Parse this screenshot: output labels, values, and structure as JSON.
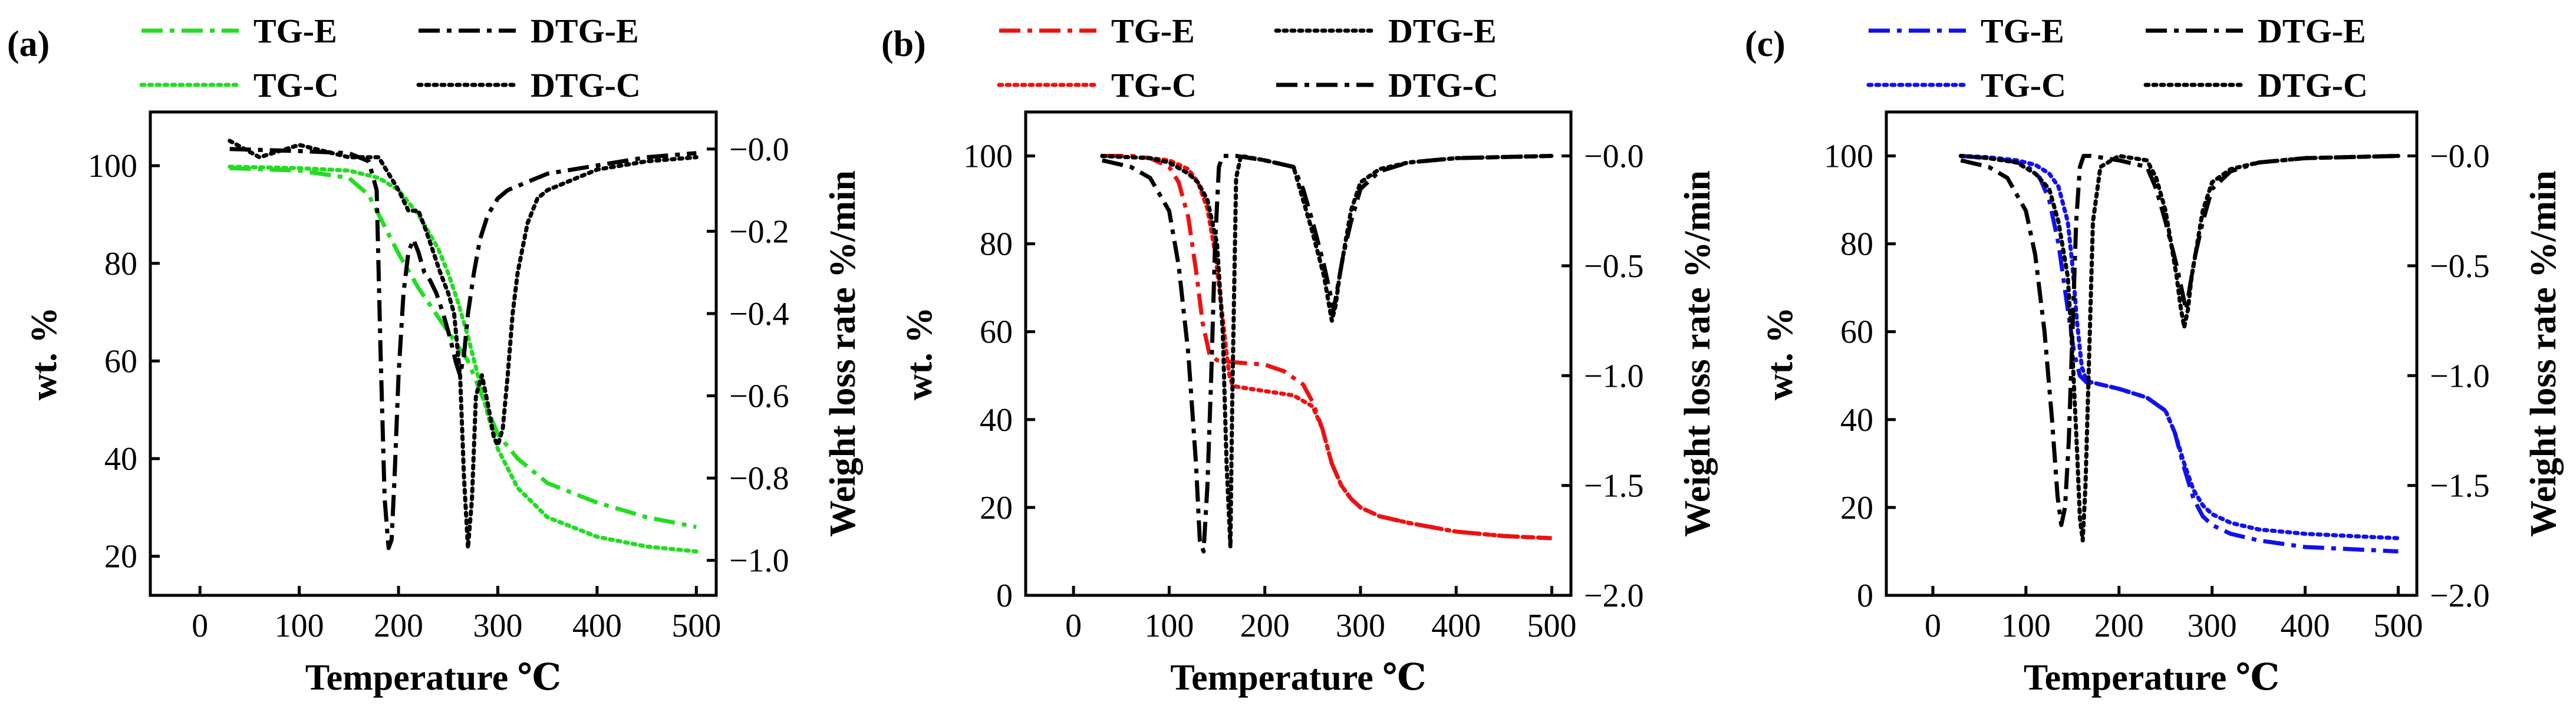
{
  "figure": {
    "panel_count": 3
  },
  "chart_data": [
    {
      "panel": "(a)",
      "type": "line",
      "xlabel": "Temperature ℃",
      "ylabel_left": "wt. %",
      "ylabel_right": "Weight loss rate %/min",
      "xlim": [
        -50,
        520
      ],
      "xticks": [
        0,
        100,
        200,
        300,
        400,
        500
      ],
      "ylim_left": [
        12,
        111
      ],
      "yticks_left": [
        20,
        40,
        60,
        80,
        100
      ],
      "ylim_right": [
        -1.085,
        0.09
      ],
      "yticks_right": [
        -1.0,
        -0.8,
        -0.6,
        -0.4,
        -0.2,
        -0.0
      ],
      "ytick_labels_right": [
        "−1.0",
        "−0.8",
        "−0.6",
        "−0.4",
        "−0.2",
        "−0.0"
      ],
      "legend": [
        {
          "label": "TG-E",
          "style": "dashdot",
          "color": "#22dd22"
        },
        {
          "label": "DTG-E",
          "style": "dashdot",
          "color": "#000000"
        },
        {
          "label": "TG-C",
          "style": "dotted",
          "color": "#22dd22"
        },
        {
          "label": "DTG-C",
          "style": "dotted",
          "color": "#000000"
        }
      ],
      "series": [
        {
          "name": "TG-E",
          "axis": "left",
          "style": "dashdot",
          "color": "#22dd22",
          "x": [
            30,
            100,
            150,
            170,
            180,
            190,
            200,
            210,
            220,
            230,
            240,
            250,
            260,
            270,
            280,
            290,
            300,
            320,
            350,
            400,
            450,
            500
          ],
          "y": [
            99.5,
            99,
            97.5,
            94,
            90,
            86,
            82,
            78.5,
            75,
            72,
            69,
            66,
            63,
            60,
            55,
            50,
            45,
            40,
            35,
            31,
            28,
            26
          ]
        },
        {
          "name": "TG-C",
          "axis": "left",
          "style": "dotted",
          "color": "#22dd22",
          "x": [
            30,
            100,
            150,
            180,
            200,
            220,
            240,
            250,
            260,
            270,
            280,
            290,
            300,
            320,
            350,
            400,
            450,
            500
          ],
          "y": [
            99.8,
            99.5,
            99,
            97.5,
            95,
            90,
            83,
            78,
            72,
            65,
            57,
            49,
            42,
            34,
            28,
            24,
            22,
            21
          ]
        },
        {
          "name": "DTG-E",
          "axis": "right",
          "style": "dashdot",
          "color": "#000000",
          "x": [
            30,
            100,
            150,
            170,
            178,
            182,
            186,
            190,
            193,
            196,
            200,
            205,
            210,
            215,
            220,
            226,
            232,
            238,
            245,
            252,
            258,
            262,
            266,
            270,
            276,
            282,
            290,
            300,
            310,
            320,
            350,
            400,
            450,
            500
          ],
          "y": [
            0.0,
            -0.005,
            -0.01,
            -0.03,
            -0.1,
            -0.5,
            -0.85,
            -0.97,
            -0.95,
            -0.8,
            -0.55,
            -0.35,
            -0.25,
            -0.22,
            -0.25,
            -0.3,
            -0.32,
            -0.35,
            -0.4,
            -0.46,
            -0.52,
            -0.55,
            -0.5,
            -0.4,
            -0.3,
            -0.22,
            -0.16,
            -0.12,
            -0.1,
            -0.09,
            -0.06,
            -0.04,
            -0.02,
            -0.01
          ]
        },
        {
          "name": "DTG-C",
          "axis": "right",
          "style": "dotted",
          "color": "#000000",
          "x": [
            30,
            60,
            100,
            150,
            180,
            200,
            210,
            220,
            228,
            235,
            242,
            250,
            256,
            262,
            266,
            270,
            274,
            278,
            284,
            290,
            296,
            300,
            305,
            310,
            315,
            320,
            330,
            340,
            350,
            400,
            450,
            500
          ],
          "y": [
            0.02,
            -0.02,
            0.01,
            -0.02,
            -0.02,
            -0.1,
            -0.15,
            -0.15,
            -0.2,
            -0.25,
            -0.3,
            -0.35,
            -0.4,
            -0.55,
            -0.8,
            -0.97,
            -0.85,
            -0.6,
            -0.55,
            -0.62,
            -0.7,
            -0.72,
            -0.68,
            -0.55,
            -0.4,
            -0.3,
            -0.18,
            -0.12,
            -0.1,
            -0.05,
            -0.03,
            -0.02
          ]
        }
      ]
    },
    {
      "panel": "(b)",
      "type": "line",
      "xlabel": "Temperature ℃",
      "ylabel_left": "wt. %",
      "ylabel_right": "Weight loss rate %/min",
      "xlim": [
        -50,
        520
      ],
      "xticks": [
        0,
        100,
        200,
        300,
        400,
        500
      ],
      "ylim_left": [
        0,
        110
      ],
      "yticks_left": [
        0,
        20,
        40,
        60,
        80,
        100
      ],
      "ylim_right": [
        -2.0,
        0.2
      ],
      "yticks_right": [
        -2.0,
        -1.5,
        -1.0,
        -0.5,
        -0.0
      ],
      "ytick_labels_right": [
        "−2.0",
        "−1.5",
        "−1.0",
        "−0.5",
        "−0.0"
      ],
      "legend": [
        {
          "label": "TG-E",
          "style": "dashdot",
          "color": "#ee1111"
        },
        {
          "label": "DTG-E",
          "style": "dotted",
          "color": "#000000"
        },
        {
          "label": "TG-C",
          "style": "dotted",
          "color": "#ee1111"
        },
        {
          "label": "DTG-C",
          "style": "dashdot",
          "color": "#000000"
        }
      ],
      "series": [
        {
          "name": "TG-E",
          "axis": "left",
          "style": "dashdot",
          "color": "#ee1111",
          "x": [
            30,
            60,
            80,
            100,
            110,
            120,
            128,
            135,
            142,
            150,
            170,
            200,
            220,
            240,
            250,
            260,
            270,
            280,
            290,
            300,
            320,
            350,
            400,
            450,
            500
          ],
          "y": [
            100,
            100,
            99.5,
            97.5,
            94,
            86,
            74,
            62,
            55,
            53.5,
            53,
            52.5,
            51,
            48,
            44,
            38,
            30,
            25,
            22,
            20,
            18,
            16.5,
            14.5,
            13.5,
            13
          ]
        },
        {
          "name": "TG-C",
          "axis": "left",
          "style": "dotted",
          "color": "#ee1111",
          "x": [
            30,
            80,
            100,
            120,
            130,
            140,
            148,
            155,
            160,
            163,
            166,
            170,
            200,
            230,
            250,
            260,
            270,
            280,
            290,
            300,
            320,
            350,
            400,
            450,
            500
          ],
          "y": [
            100,
            99.5,
            99,
            97,
            94,
            88,
            78,
            65,
            55,
            50,
            48,
            47.5,
            46.5,
            45.5,
            43,
            38,
            30,
            25,
            22,
            20,
            18,
            16.5,
            14.5,
            13.5,
            13
          ]
        },
        {
          "name": "DTG-E",
          "axis": "right",
          "style": "dotted",
          "color": "#000000",
          "x": [
            30,
            80,
            100,
            120,
            130,
            140,
            150,
            156,
            160,
            164,
            166,
            170,
            175,
            200,
            230,
            240,
            250,
            256,
            262,
            266,
            270,
            274,
            278,
            284,
            290,
            300,
            320,
            350,
            400,
            450,
            500
          ],
          "y": [
            0.0,
            -0.01,
            -0.03,
            -0.08,
            -0.12,
            -0.2,
            -0.4,
            -0.8,
            -1.4,
            -1.78,
            -1.1,
            -0.1,
            0.0,
            -0.02,
            -0.05,
            -0.2,
            -0.35,
            -0.45,
            -0.55,
            -0.65,
            -0.75,
            -0.68,
            -0.55,
            -0.4,
            -0.25,
            -0.12,
            -0.06,
            -0.03,
            -0.01,
            -0.005,
            -0.0
          ]
        },
        {
          "name": "DTG-C",
          "axis": "right",
          "style": "dashdot",
          "color": "#000000",
          "x": [
            30,
            60,
            80,
            100,
            110,
            120,
            128,
            132,
            136,
            140,
            144,
            148,
            152,
            156,
            160,
            165,
            170,
            200,
            230,
            240,
            250,
            256,
            262,
            268,
            272,
            276,
            282,
            290,
            300,
            320,
            350,
            400,
            450,
            500
          ],
          "y": [
            -0.02,
            -0.05,
            -0.1,
            -0.25,
            -0.5,
            -0.9,
            -1.4,
            -1.75,
            -1.8,
            -1.5,
            -1.0,
            -0.4,
            -0.05,
            0.0,
            0.0,
            0.0,
            0.0,
            -0.02,
            -0.05,
            -0.15,
            -0.3,
            -0.4,
            -0.5,
            -0.62,
            -0.7,
            -0.6,
            -0.45,
            -0.3,
            -0.15,
            -0.07,
            -0.03,
            -0.01,
            -0.005,
            -0.0
          ]
        }
      ]
    },
    {
      "panel": "(c)",
      "type": "line",
      "xlabel": "Temperature ℃",
      "ylabel_left": "wt. %",
      "ylabel_right": "Weight loss rate %/min",
      "xlim": [
        -50,
        520
      ],
      "xticks": [
        0,
        100,
        200,
        300,
        400,
        500
      ],
      "ylim_left": [
        0,
        110
      ],
      "yticks_left": [
        0,
        20,
        40,
        60,
        80,
        100
      ],
      "ylim_right": [
        -2.0,
        0.2
      ],
      "yticks_right": [
        -2.0,
        -1.5,
        -1.0,
        -0.5,
        -0.0
      ],
      "ytick_labels_right": [
        "−2.0",
        "−1.5",
        "−1.0",
        "−0.5",
        "−0.0"
      ],
      "legend": [
        {
          "label": "TG-E",
          "style": "dashdot",
          "color": "#1111ee"
        },
        {
          "label": "DTG-E",
          "style": "dashdot",
          "color": "#000000"
        },
        {
          "label": "TG-C",
          "style": "dotted",
          "color": "#1111ee"
        },
        {
          "label": "DTG-C",
          "style": "dotted",
          "color": "#000000"
        }
      ],
      "series": [
        {
          "name": "TG-E",
          "axis": "left",
          "style": "dashdot",
          "color": "#1111ee",
          "x": [
            30,
            60,
            80,
            100,
            115,
            125,
            135,
            145,
            152,
            158,
            165,
            180,
            200,
            230,
            250,
            260,
            270,
            280,
            290,
            300,
            320,
            350,
            400,
            450,
            500
          ],
          "y": [
            100,
            99.5,
            99,
            98,
            95,
            90,
            80,
            65,
            55,
            50,
            48.5,
            48,
            47,
            45,
            42,
            37,
            29,
            22,
            18,
            16,
            14,
            12.5,
            11,
            10.5,
            10
          ]
        },
        {
          "name": "TG-C",
          "axis": "left",
          "style": "dotted",
          "color": "#1111ee",
          "x": [
            30,
            60,
            90,
            110,
            125,
            135,
            145,
            150,
            155,
            160,
            165,
            170,
            200,
            230,
            250,
            260,
            270,
            280,
            290,
            300,
            320,
            350,
            400,
            450,
            500
          ],
          "y": [
            100,
            99.7,
            99,
            98,
            96,
            93,
            85,
            75,
            62,
            52,
            49,
            48.5,
            47,
            45,
            42,
            37,
            30,
            24,
            20.5,
            18.5,
            16.5,
            15,
            14,
            13.5,
            13
          ]
        },
        {
          "name": "DTG-E",
          "axis": "right",
          "style": "dashdot",
          "color": "#000000",
          "x": [
            30,
            60,
            80,
            100,
            110,
            120,
            128,
            134,
            138,
            142,
            146,
            150,
            154,
            158,
            162,
            170,
            200,
            230,
            240,
            250,
            256,
            262,
            268,
            272,
            276,
            282,
            290,
            300,
            320,
            350,
            400,
            450,
            500
          ],
          "y": [
            -0.02,
            -0.05,
            -0.1,
            -0.25,
            -0.45,
            -0.8,
            -1.2,
            -1.55,
            -1.68,
            -1.6,
            -1.3,
            -0.8,
            -0.3,
            -0.05,
            0.0,
            0.0,
            -0.02,
            -0.05,
            -0.15,
            -0.3,
            -0.4,
            -0.5,
            -0.62,
            -0.7,
            -0.6,
            -0.45,
            -0.3,
            -0.15,
            -0.07,
            -0.03,
            -0.01,
            -0.005,
            -0.0
          ]
        },
        {
          "name": "DTG-C",
          "axis": "right",
          "style": "dotted",
          "color": "#000000",
          "x": [
            30,
            60,
            90,
            110,
            125,
            135,
            145,
            150,
            155,
            158,
            161,
            164,
            168,
            172,
            180,
            200,
            230,
            240,
            250,
            256,
            262,
            266,
            270,
            274,
            278,
            284,
            290,
            300,
            320,
            350,
            400,
            450,
            500
          ],
          "y": [
            0.0,
            -0.01,
            -0.03,
            -0.08,
            -0.15,
            -0.3,
            -0.55,
            -0.9,
            -1.35,
            -1.65,
            -1.75,
            -1.5,
            -0.9,
            -0.3,
            -0.05,
            0.0,
            -0.02,
            -0.1,
            -0.25,
            -0.4,
            -0.55,
            -0.68,
            -0.78,
            -0.7,
            -0.55,
            -0.4,
            -0.25,
            -0.12,
            -0.06,
            -0.03,
            -0.01,
            -0.005,
            -0.0
          ]
        }
      ]
    }
  ]
}
